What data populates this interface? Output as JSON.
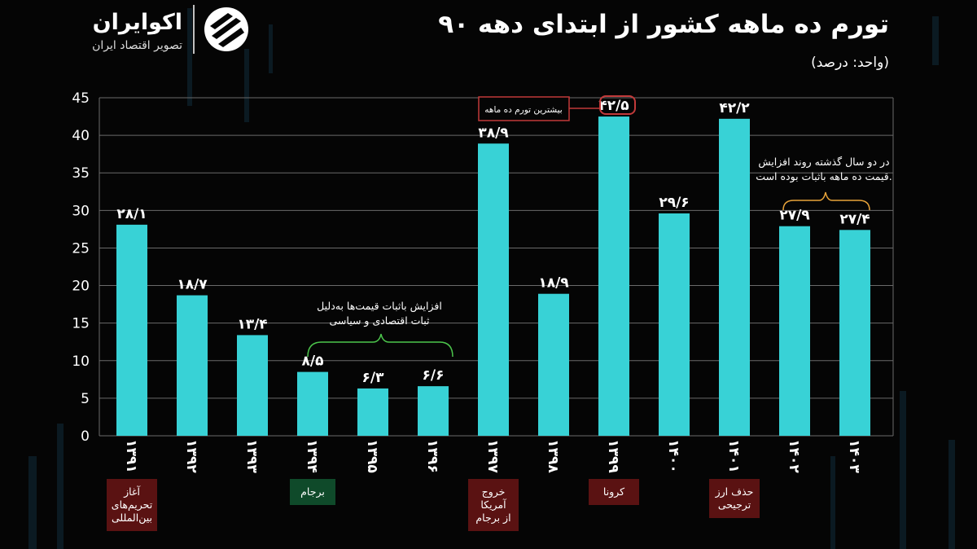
{
  "header": {
    "title": "تورم ده ماهه کشور از ابتدای دهه ۹۰",
    "unit": "(واحد: درصد)"
  },
  "logo": {
    "name": "اکوایران",
    "tagline": "تصویر اقتصاد ایران"
  },
  "chart_data": {
    "type": "bar",
    "categories": [
      "۱۳۹۱",
      "۱۳۹۲",
      "۱۳۹۳",
      "۱۳۹۴",
      "۱۳۹۵",
      "۱۳۹۶",
      "۱۳۹۷",
      "۱۳۹۸",
      "۱۳۹۹",
      "۱۴۰۰",
      "۱۴۰۱",
      "۱۴۰۲",
      "۱۴۰۳"
    ],
    "values": [
      28.1,
      18.7,
      13.4,
      8.5,
      6.3,
      6.6,
      38.9,
      18.9,
      42.5,
      29.6,
      42.2,
      27.9,
      27.4
    ],
    "value_labels": [
      "۲۸/۱",
      "۱۸/۷",
      "۱۳/۴",
      "۸/۵",
      "۶/۳",
      "۶/۶",
      "۳۸/۹",
      "۱۸/۹",
      "۴۲/۵",
      "۲۹/۶",
      "۴۲/۲",
      "۲۷/۹",
      "۲۷/۴"
    ],
    "ylim": [
      0,
      45
    ],
    "yticks": [
      "0",
      "5",
      "10",
      "15",
      "20",
      "25",
      "30",
      "35",
      "40",
      "45"
    ],
    "grid": true,
    "bar_color": "#38d2d6",
    "annotations": {
      "max_label": "بیشترین تورم ده ماهه",
      "stable_note": [
        "افزایش باثبات قیمت‌ها به‌دلیل",
        "ثبات اقتصادی و سیاسی"
      ],
      "recent_note": [
        "در دو سال گذشته روند افزایش",
        "قیمت ده ماهه باثبات بوده است."
      ]
    },
    "events": [
      {
        "category_index": 0,
        "lines": [
          "آغاز",
          "تحریم‌های",
          "بین‌المللی"
        ],
        "color": "#5a1212"
      },
      {
        "category_index": 3,
        "lines": [
          "برجام"
        ],
        "color": "#0f4a2a"
      },
      {
        "category_index": 6,
        "lines": [
          "خروج",
          "آمریکا",
          "از برجام"
        ],
        "color": "#5a1212"
      },
      {
        "category_index": 8,
        "lines": [
          "کرونا"
        ],
        "color": "#5a1212"
      },
      {
        "category_index": 10,
        "lines": [
          "حذف ارز",
          "ترجیحی"
        ],
        "color": "#5a1212"
      }
    ]
  }
}
